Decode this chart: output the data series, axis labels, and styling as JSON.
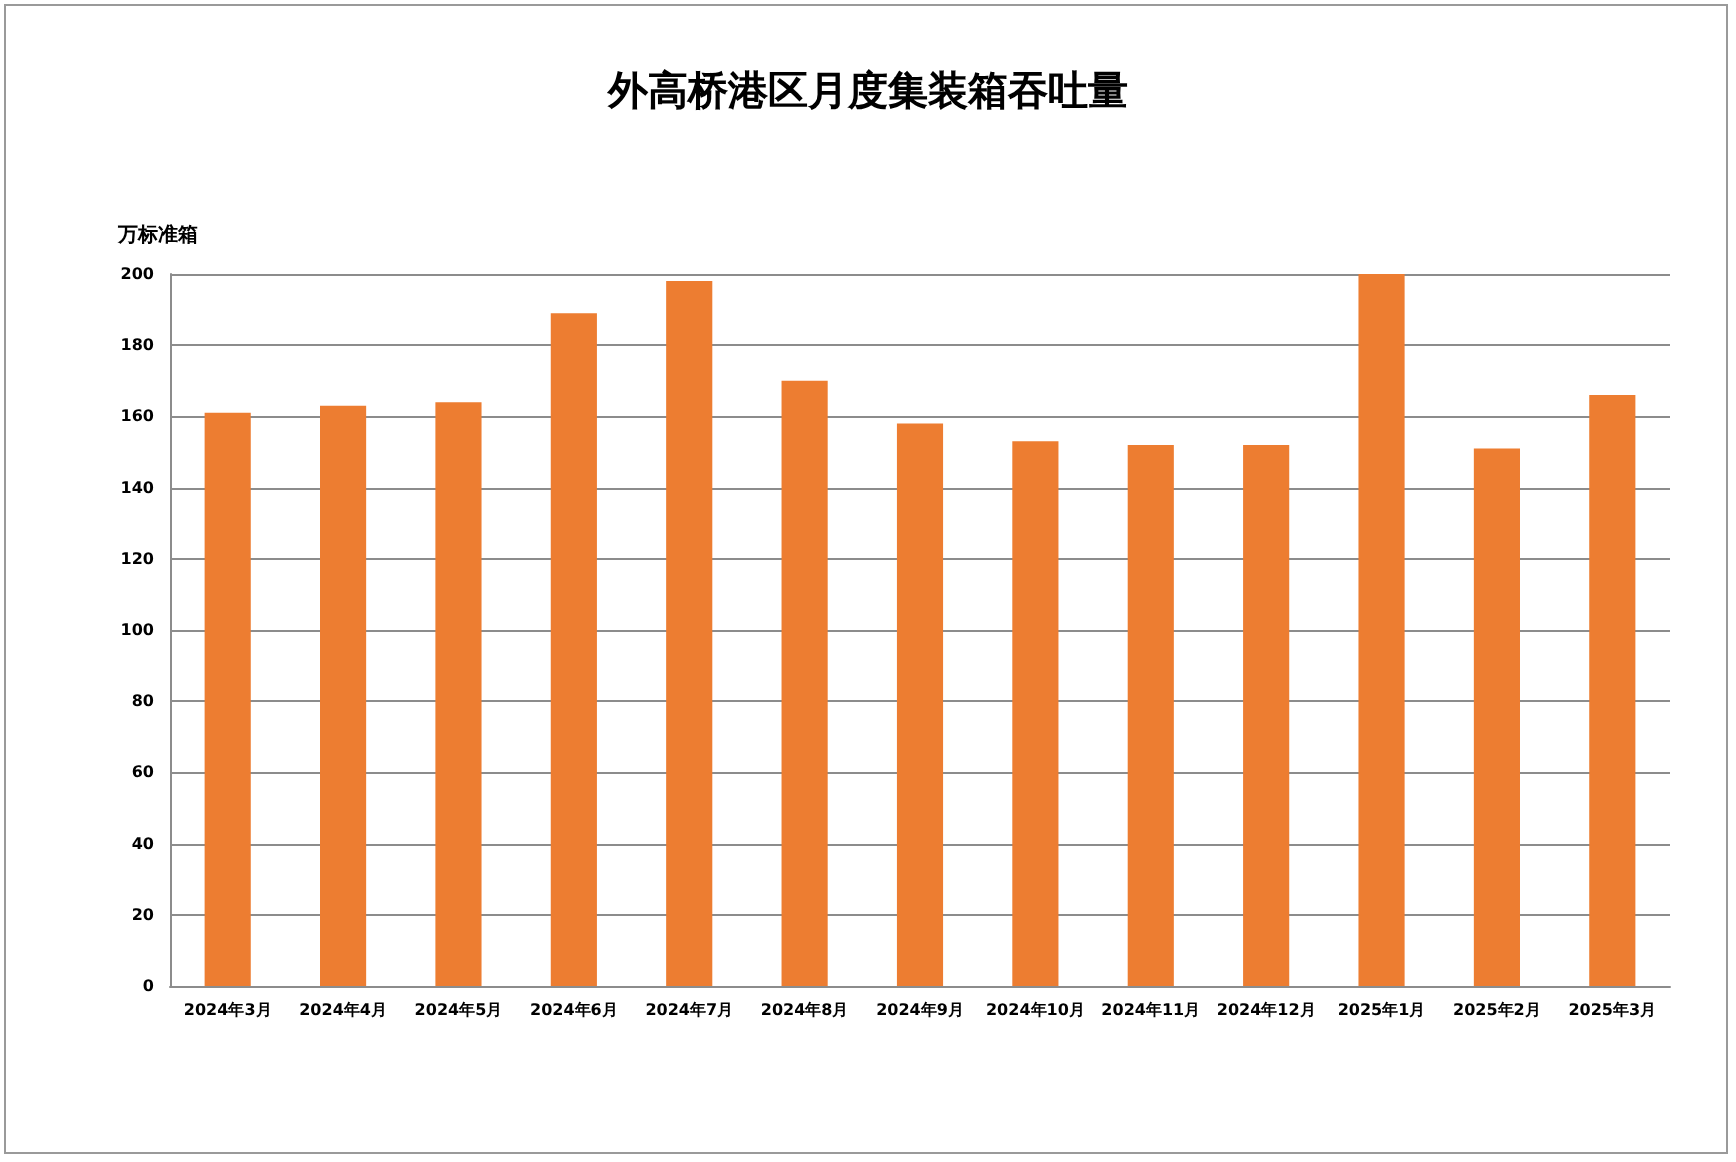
{
  "chart_data": {
    "type": "bar",
    "title": "外高桥港区月度集装箱吞吐量",
    "ylabel": "万标准箱",
    "categories": [
      "2024年3月",
      "2024年4月",
      "2024年5月",
      "2024年6月",
      "2024年7月",
      "2024年8月",
      "2024年9月",
      "2024年10月",
      "2024年11月",
      "2024年12月",
      "2025年1月",
      "2025年2月",
      "2025年3月"
    ],
    "values": [
      161,
      163,
      164,
      189,
      198,
      170,
      158,
      153,
      152,
      152,
      200,
      151,
      166
    ],
    "color": "#ed7d31",
    "ylim": [
      0,
      200
    ],
    "yticks": [
      0,
      20,
      40,
      60,
      80,
      100,
      120,
      140,
      160,
      180,
      200
    ],
    "grid": "y"
  }
}
